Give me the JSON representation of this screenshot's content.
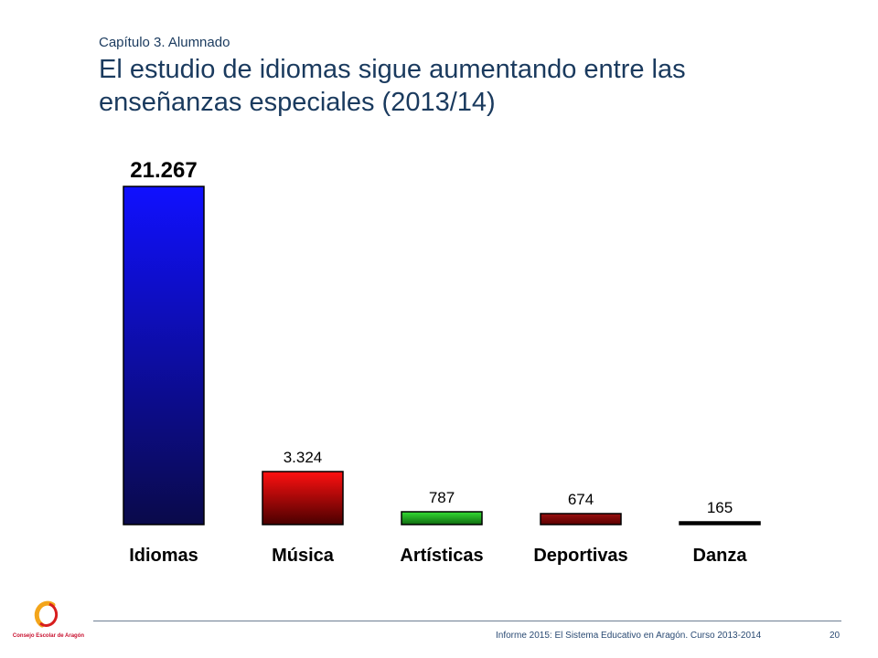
{
  "header": {
    "chapter": "Capítulo 3. Alumnado",
    "title": "El estudio de idiomas sigue aumentando entre las enseñanzas especiales (2013/14)"
  },
  "chart_data": {
    "type": "bar",
    "categories": [
      "Idiomas",
      "Música",
      "Artísticas",
      "Deportivas",
      "Danza"
    ],
    "values": [
      21267,
      3324,
      787,
      674,
      165
    ],
    "value_labels": [
      "21.267",
      "3.324",
      "787",
      "674",
      "165"
    ],
    "ylim": [
      0,
      21267
    ],
    "grid": false,
    "legend": "none",
    "colors": {
      "Idiomas": [
        "#0a0a4a",
        "#1010ff"
      ],
      "Música": [
        "#4a0000",
        "#ff1010"
      ],
      "Artísticas": [
        "#0f6a0f",
        "#33dd33"
      ],
      "Deportivas": [
        "#5a0000",
        "#9a1010"
      ],
      "Danza": [
        "#000000",
        "#000000"
      ]
    }
  },
  "logo": {
    "text": "Consejo Escolar de Aragón",
    "colors": {
      "arc": "#f3a51b",
      "ring": "#d81e1e"
    }
  },
  "footer": {
    "text": "Informe 2015: El Sistema Educativo en Aragón. Curso 2013-2014",
    "page": "20"
  }
}
